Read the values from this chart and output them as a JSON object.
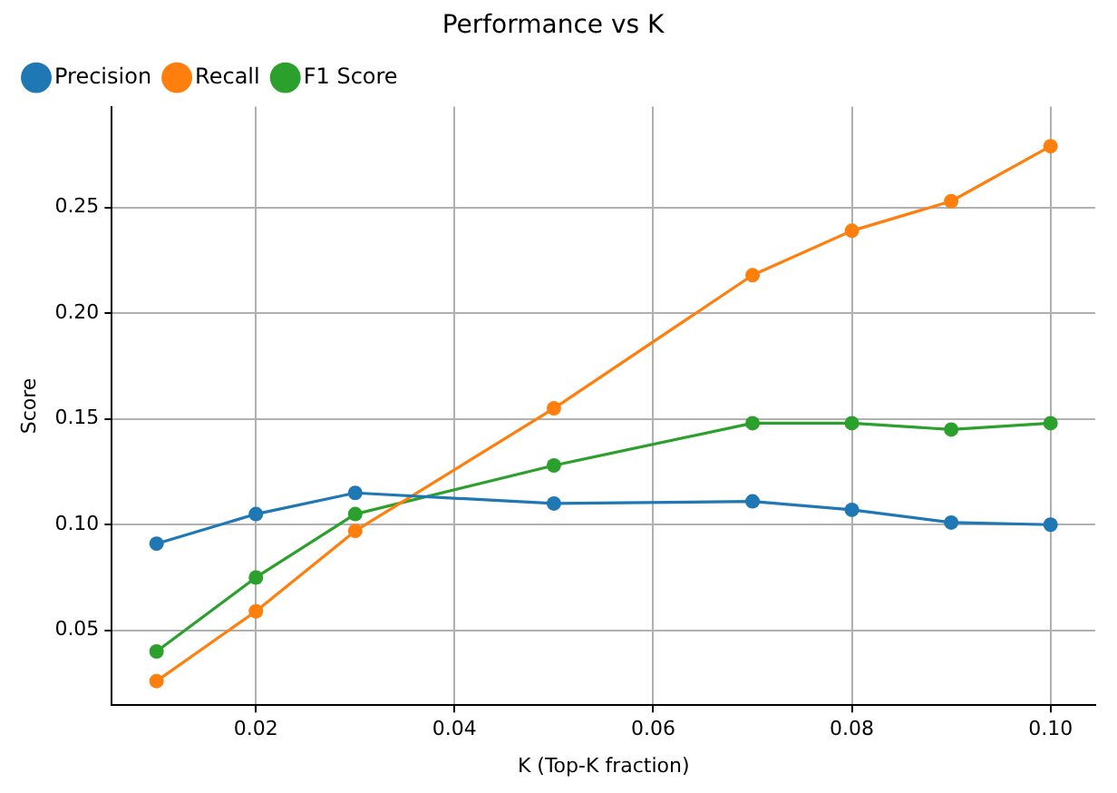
{
  "chart_data": {
    "type": "line",
    "title": "Performance vs K",
    "xlabel": "K (Top-K fraction)",
    "ylabel": "Score",
    "x": [
      0.01,
      0.02,
      0.03,
      0.05,
      0.07,
      0.08,
      0.09,
      0.1
    ],
    "series": [
      {
        "name": "Precision",
        "color": "#1f77b4",
        "values": [
          0.091,
          0.105,
          0.115,
          0.11,
          0.111,
          0.107,
          0.101,
          0.1
        ]
      },
      {
        "name": "Recall",
        "color": "#ff7f0e",
        "values": [
          0.026,
          0.059,
          0.097,
          0.155,
          0.218,
          0.239,
          0.253,
          0.279
        ]
      },
      {
        "name": "F1 Score",
        "color": "#2ca02c",
        "values": [
          0.04,
          0.075,
          0.105,
          0.128,
          0.148,
          0.148,
          0.145,
          0.148
        ]
      }
    ],
    "xlim": [
      0.0055,
      0.1045
    ],
    "ylim": [
      0.0146,
      0.2977
    ],
    "xticks": [
      {
        "value": 0.02,
        "label": "0.02"
      },
      {
        "value": 0.04,
        "label": "0.04"
      },
      {
        "value": 0.06,
        "label": "0.06"
      },
      {
        "value": 0.08,
        "label": "0.08"
      },
      {
        "value": 0.1,
        "label": "0.10"
      }
    ],
    "yticks": [
      {
        "value": 0.05,
        "label": "0.05"
      },
      {
        "value": 0.1,
        "label": "0.10"
      },
      {
        "value": 0.15,
        "label": "0.15"
      },
      {
        "value": 0.2,
        "label": "0.20"
      },
      {
        "value": 0.25,
        "label": "0.25"
      }
    ],
    "grid": true,
    "legend": "top left",
    "marker": "circle",
    "line_style": "solid"
  }
}
